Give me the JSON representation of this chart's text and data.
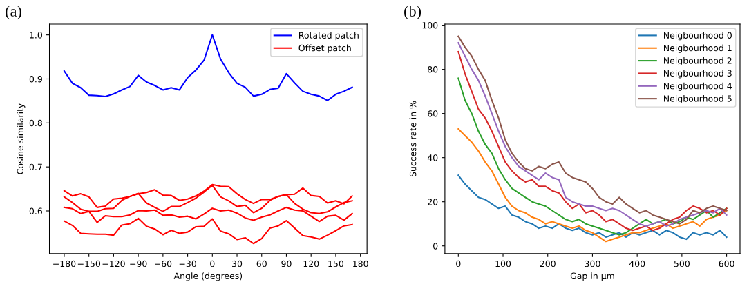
{
  "chart_data": [
    {
      "type": "line",
      "title": "(a)",
      "xlabel": "Angle (degrees)",
      "ylabel": "Cosine similarity",
      "x": [
        -180,
        -170,
        -160,
        -150,
        -140,
        -130,
        -120,
        -110,
        -100,
        -90,
        -80,
        -70,
        -60,
        -50,
        -40,
        -30,
        -20,
        -10,
        0,
        10,
        20,
        30,
        40,
        50,
        60,
        70,
        80,
        90,
        100,
        110,
        120,
        130,
        140,
        150,
        160,
        170
      ],
      "xlim": [
        -198,
        188
      ],
      "xticks": [
        {
          "value": -180,
          "label": "−180"
        },
        {
          "value": -150,
          "label": "−150"
        },
        {
          "value": -120,
          "label": "−120"
        },
        {
          "value": -90,
          "label": "−90"
        },
        {
          "value": -60,
          "label": "−60"
        },
        {
          "value": -30,
          "label": "−30"
        },
        0,
        30,
        60,
        90,
        120,
        150,
        180
      ],
      "ylim": [
        0.503,
        1.0245
      ],
      "yticks": [
        {
          "value": 0.6,
          "label": "0.6"
        },
        {
          "value": 0.7,
          "label": "0.7"
        },
        {
          "value": 0.8,
          "label": "0.8"
        },
        {
          "value": 0.9,
          "label": "0.9"
        },
        {
          "value": 1.0,
          "label": "1.0"
        }
      ],
      "legend": "top right",
      "grid": false,
      "series": [
        {
          "name": "Rotated patch",
          "color": "#0000ff",
          "values": [
            0.918,
            0.89,
            0.88,
            0.863,
            0.862,
            0.86,
            0.866,
            0.875,
            0.883,
            0.908,
            0.893,
            0.885,
            0.875,
            0.88,
            0.875,
            0.903,
            0.92,
            0.943,
            1.0,
            0.945,
            0.914,
            0.89,
            0.881,
            0.861,
            0.865,
            0.876,
            0.879,
            0.912,
            0.891,
            0.872,
            0.865,
            0.861,
            0.851,
            0.865,
            0.872,
            0.881
          ]
        },
        {
          "name": "Offset patch",
          "color": "#ff0000",
          "values": [
            0.646,
            0.634,
            0.639,
            0.632,
            0.608,
            0.611,
            0.627,
            0.629,
            0.633,
            0.639,
            0.642,
            0.648,
            0.636,
            0.635,
            0.624,
            0.627,
            0.634,
            0.645,
            0.66,
            0.656,
            0.655,
            0.639,
            0.626,
            0.617,
            0.626,
            0.626,
            0.633,
            0.637,
            0.638,
            0.652,
            0.635,
            0.633,
            0.618,
            0.623,
            0.616,
            0.634
          ]
        },
        {
          "color": "#ff0000",
          "values": [
            0.632,
            0.619,
            0.604,
            0.599,
            0.599,
            0.605,
            0.606,
            0.624,
            0.633,
            0.64,
            0.618,
            0.608,
            0.599,
            0.61,
            0.61,
            0.619,
            0.629,
            0.643,
            0.658,
            0.632,
            0.623,
            0.61,
            0.613,
            0.596,
            0.606,
            0.624,
            0.633,
            0.637,
            0.617,
            0.604,
            0.596,
            0.594,
            0.598,
            0.609,
            0.619,
            0.623
          ]
        },
        {
          "color": "#ff0000",
          "values": [
            0.608,
            0.605,
            0.594,
            0.599,
            0.574,
            0.589,
            0.587,
            0.587,
            0.591,
            0.601,
            0.6,
            0.602,
            0.59,
            0.591,
            0.586,
            0.588,
            0.582,
            0.593,
            0.606,
            0.6,
            0.602,
            0.595,
            0.584,
            0.579,
            0.586,
            0.591,
            0.6,
            0.608,
            0.602,
            0.6,
            0.588,
            0.576,
            0.588,
            0.59,
            0.579,
            0.594
          ]
        },
        {
          "color": "#ff0000",
          "values": [
            0.577,
            0.567,
            0.549,
            0.548,
            0.547,
            0.547,
            0.545,
            0.568,
            0.571,
            0.583,
            0.565,
            0.559,
            0.546,
            0.556,
            0.549,
            0.552,
            0.564,
            0.565,
            0.582,
            0.554,
            0.548,
            0.535,
            0.539,
            0.526,
            0.537,
            0.561,
            0.566,
            0.578,
            0.561,
            0.544,
            0.541,
            0.536,
            0.545,
            0.555,
            0.566,
            0.569
          ]
        }
      ]
    },
    {
      "type": "line",
      "title": "(b)",
      "xlabel": "Gap in µm",
      "ylabel": "Success rate in %",
      "x": [
        0,
        15,
        30,
        45,
        60,
        75,
        90,
        105,
        120,
        135,
        150,
        165,
        180,
        195,
        210,
        225,
        240,
        255,
        270,
        285,
        300,
        315,
        330,
        345,
        360,
        375,
        390,
        405,
        420,
        435,
        450,
        465,
        480,
        495,
        510,
        525,
        540,
        555,
        570,
        585,
        600
      ],
      "xlim": [
        -30,
        630
      ],
      "xticks": [
        0,
        100,
        200,
        300,
        400,
        500,
        600
      ],
      "ylim": [
        -3.5,
        100.5
      ],
      "yticks": [
        0,
        20,
        40,
        60,
        80,
        100
      ],
      "legend": "top right",
      "grid": false,
      "series": [
        {
          "name": "Neigbourhood 0",
          "color": "#1f77b4",
          "values": [
            32,
            28,
            25,
            22,
            21,
            19,
            17,
            18,
            14,
            13,
            11,
            10,
            8,
            9,
            8,
            10,
            8,
            7,
            8,
            6,
            5,
            6,
            4,
            5,
            6,
            4,
            6,
            5,
            6,
            7,
            5,
            7,
            6,
            4,
            3,
            6,
            5,
            6,
            5,
            7,
            4
          ]
        },
        {
          "name": "Neigbourhood 1",
          "color": "#ff7f0e",
          "values": [
            53,
            50,
            47,
            43,
            38,
            34,
            28,
            22,
            18,
            16,
            15,
            13,
            12,
            10,
            11,
            10,
            9,
            8,
            9,
            7,
            6,
            4,
            2,
            3,
            4,
            5,
            6,
            6,
            7,
            8,
            9,
            10,
            8,
            9,
            10,
            11,
            9,
            12,
            13,
            14,
            16
          ]
        },
        {
          "name": "Neigbourhood 2",
          "color": "#2ca02c",
          "values": [
            76,
            66,
            60,
            52,
            46,
            42,
            35,
            30,
            26,
            24,
            22,
            20,
            19,
            18,
            16,
            14,
            12,
            11,
            12,
            10,
            9,
            8,
            7,
            6,
            5,
            6,
            8,
            10,
            12,
            10,
            11,
            12,
            10,
            11,
            13,
            12,
            14,
            16,
            13,
            15,
            17
          ]
        },
        {
          "name": "Neigbourhood 3",
          "color": "#d62728",
          "values": [
            88,
            78,
            70,
            62,
            58,
            52,
            45,
            38,
            34,
            31,
            29,
            30,
            27,
            27,
            25,
            24,
            20,
            17,
            19,
            15,
            16,
            14,
            11,
            12,
            10,
            8,
            7,
            8,
            9,
            7,
            8,
            10,
            12,
            13,
            16,
            18,
            17,
            15,
            16,
            14,
            17
          ]
        },
        {
          "name": "Neigbourhood 4",
          "color": "#9467bd",
          "values": [
            92,
            86,
            80,
            75,
            68,
            60,
            52,
            45,
            40,
            36,
            34,
            32,
            30,
            33,
            31,
            30,
            22,
            20,
            19,
            18,
            18,
            17,
            16,
            17,
            16,
            14,
            12,
            10,
            9,
            10,
            11,
            9,
            10,
            12,
            13,
            14,
            15,
            16,
            15,
            17,
            14
          ]
        },
        {
          "name": "Neigbourhood 5",
          "color": "#8c564b",
          "values": [
            95,
            90,
            86,
            80,
            75,
            66,
            58,
            48,
            42,
            38,
            35,
            34,
            36,
            35,
            37,
            38,
            33,
            31,
            30,
            29,
            26,
            22,
            20,
            19,
            22,
            19,
            17,
            15,
            16,
            14,
            13,
            12,
            11,
            10,
            12,
            16,
            15,
            17,
            18,
            17,
            16
          ]
        }
      ]
    }
  ]
}
